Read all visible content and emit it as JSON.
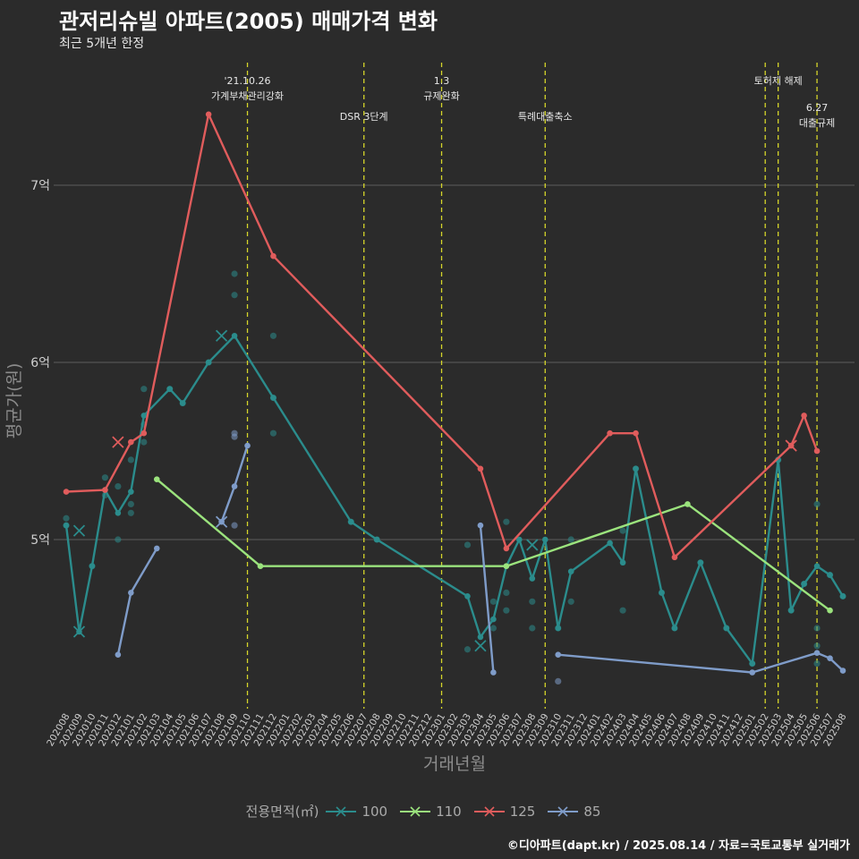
{
  "header": {
    "title": "관저리슈빌 아파트(2005) 매매가격 변화",
    "subtitle": "최근 5개년 한정"
  },
  "caption": "©디아파트(dapt.kr) / 2025.08.14 / 자료=국토교통부 실거래가",
  "legend": {
    "title": "전용면적(㎡)",
    "items": [
      {
        "label": "100",
        "color": "#2b8c8c"
      },
      {
        "label": "110",
        "color": "#9be37d"
      },
      {
        "label": "125",
        "color": "#e05c5c"
      },
      {
        "label": "85",
        "color": "#7f9cc9"
      }
    ]
  },
  "chart_data": {
    "type": "line",
    "xlabel": "거래년월",
    "ylabel": "평균가(원)",
    "ylim": [
      4.05,
      7.95
    ],
    "y_ticks": [
      {
        "value": 5,
        "label": "5억"
      },
      {
        "value": 6,
        "label": "6억"
      },
      {
        "value": 7,
        "label": "7억"
      }
    ],
    "x": [
      "202008",
      "202009",
      "202010",
      "202011",
      "202012",
      "202101",
      "202102",
      "202103",
      "202104",
      "202105",
      "202106",
      "202107",
      "202108",
      "202109",
      "202110",
      "202111",
      "202112",
      "202201",
      "202202",
      "202203",
      "202204",
      "202205",
      "202206",
      "202207",
      "202208",
      "202209",
      "202210",
      "202211",
      "202212",
      "202301",
      "202302",
      "202303",
      "202304",
      "202305",
      "202306",
      "202307",
      "202308",
      "202309",
      "202310",
      "202311",
      "202312",
      "202401",
      "202402",
      "202403",
      "202404",
      "202405",
      "202406",
      "202407",
      "202408",
      "202409",
      "202410",
      "202411",
      "202412",
      "202501",
      "202502",
      "202503",
      "202504",
      "202505",
      "202506",
      "202507",
      "202508"
    ],
    "events": [
      {
        "x": 14.0,
        "label_lines": [
          "'21.10.26",
          "가계부채관리강화"
        ],
        "level": 1
      },
      {
        "x": 23.0,
        "label_lines": [
          "DSR 3단계"
        ],
        "level": 2
      },
      {
        "x": 29.0,
        "label_lines": [
          "1.3",
          "규제완화"
        ],
        "level": 1
      },
      {
        "x": 37.0,
        "label_lines": [
          "특례대출축소"
        ],
        "level": 2
      },
      {
        "x": 54.0,
        "label_lines": [
          "토허제 해제"
        ],
        "level": 1,
        "label_x": 55.0
      },
      {
        "x": 55.0,
        "label_lines": [],
        "level": 1
      },
      {
        "x": 58.0,
        "label_lines": [
          "6.27",
          "대출규제"
        ],
        "level": 3
      }
    ],
    "series": [
      {
        "name": "100",
        "color": "#2b8c8c",
        "line": [
          [
            0,
            5.08
          ],
          [
            1,
            4.48
          ],
          [
            2,
            4.85
          ],
          [
            3,
            5.28
          ],
          [
            4,
            5.15
          ],
          [
            5,
            5.27
          ],
          [
            6,
            5.7
          ],
          [
            8,
            5.85
          ],
          [
            9,
            5.77
          ],
          [
            11,
            6.0
          ],
          [
            13,
            6.15
          ],
          [
            16,
            5.8
          ],
          [
            22,
            5.1
          ],
          [
            24,
            5.0
          ],
          [
            31,
            4.68
          ],
          [
            32,
            4.45
          ],
          [
            33,
            4.55
          ],
          [
            34,
            4.85
          ],
          [
            35,
            5.0
          ],
          [
            36,
            4.78
          ],
          [
            37,
            5.0
          ],
          [
            38,
            4.5
          ],
          [
            39,
            4.82
          ],
          [
            42,
            4.98
          ],
          [
            43,
            4.87
          ],
          [
            44,
            5.4
          ],
          [
            46,
            4.7
          ],
          [
            47,
            4.5
          ],
          [
            49,
            4.87
          ],
          [
            51,
            4.5
          ],
          [
            53,
            4.3
          ],
          [
            55,
            5.45
          ],
          [
            56,
            4.6
          ],
          [
            57,
            4.75
          ],
          [
            58,
            4.85
          ],
          [
            59,
            4.8
          ],
          [
            60,
            4.68
          ]
        ],
        "points": [
          [
            0,
            5.12
          ],
          [
            0,
            5.08
          ],
          [
            2,
            4.85
          ],
          [
            3,
            5.35
          ],
          [
            3,
            5.25
          ],
          [
            4,
            5.3
          ],
          [
            4,
            5.0
          ],
          [
            5,
            5.45
          ],
          [
            5,
            5.2
          ],
          [
            5,
            5.15
          ],
          [
            6,
            5.85
          ],
          [
            6,
            5.65
          ],
          [
            6,
            5.55
          ],
          [
            8,
            5.85
          ],
          [
            9,
            5.77
          ],
          [
            11,
            6.0
          ],
          [
            13,
            6.5
          ],
          [
            13,
            6.38
          ],
          [
            16,
            6.15
          ],
          [
            16,
            5.8
          ],
          [
            16,
            5.6
          ],
          [
            22,
            5.1
          ],
          [
            24,
            5.0
          ],
          [
            31,
            4.97
          ],
          [
            31,
            4.38
          ],
          [
            33,
            4.5
          ],
          [
            33,
            4.65
          ],
          [
            34,
            5.1
          ],
          [
            34,
            4.7
          ],
          [
            34,
            4.6
          ],
          [
            36,
            4.65
          ],
          [
            36,
            4.5
          ],
          [
            38,
            4.5
          ],
          [
            39,
            5.0
          ],
          [
            39,
            4.65
          ],
          [
            43,
            4.6
          ],
          [
            43,
            5.05
          ],
          [
            44,
            5.4
          ],
          [
            46,
            4.7
          ],
          [
            47,
            4.5
          ],
          [
            49,
            4.87
          ],
          [
            51,
            4.5
          ],
          [
            53,
            4.3
          ],
          [
            55,
            5.45
          ],
          [
            56,
            4.6
          ],
          [
            57,
            4.75
          ],
          [
            58,
            5.2
          ],
          [
            58,
            4.5
          ],
          [
            58,
            4.4
          ],
          [
            58,
            4.3
          ],
          [
            59,
            4.8
          ],
          [
            60,
            4.68
          ]
        ],
        "x_markers": [
          [
            1,
            5.05
          ],
          [
            1,
            4.48
          ],
          [
            12,
            6.15
          ],
          [
            32,
            4.4
          ],
          [
            36,
            4.97
          ]
        ]
      },
      {
        "name": "110",
        "color": "#9be37d",
        "line": [
          [
            7,
            5.34
          ],
          [
            15,
            4.85
          ],
          [
            34,
            4.85
          ],
          [
            48,
            5.2
          ],
          [
            59,
            4.6
          ]
        ],
        "points": [],
        "x_markers": []
      },
      {
        "name": "125",
        "color": "#e05c5c",
        "line": [
          [
            0,
            5.27
          ],
          [
            3,
            5.28
          ],
          [
            5,
            5.55
          ],
          [
            6,
            5.6
          ],
          [
            11,
            7.4
          ],
          [
            16,
            6.6
          ],
          [
            32,
            5.4
          ],
          [
            34,
            4.95
          ],
          [
            42,
            5.6
          ],
          [
            44,
            5.6
          ],
          [
            47,
            4.9
          ],
          [
            56,
            5.53
          ],
          [
            57,
            5.7
          ],
          [
            58,
            5.5
          ]
        ],
        "points": [],
        "x_markers": [
          [
            4,
            5.55
          ],
          [
            56,
            5.53
          ]
        ]
      },
      {
        "name": "85",
        "color": "#7f9cc9",
        "line": [
          [
            4,
            4.35
          ],
          [
            5,
            4.7
          ],
          [
            7,
            4.95
          ],
          [
            12,
            5.1
          ],
          [
            13,
            5.3
          ],
          [
            14,
            5.53
          ],
          [
            32,
            5.08
          ],
          [
            33,
            4.25
          ],
          [
            38,
            4.35
          ],
          [
            53,
            4.25
          ],
          [
            58,
            4.36
          ],
          [
            59,
            4.33
          ],
          [
            60,
            4.26
          ]
        ],
        "breaks": [
          3,
          6,
          8
        ],
        "points": [
          [
            13,
            5.6
          ],
          [
            13,
            5.58
          ],
          [
            13,
            5.08
          ],
          [
            38,
            4.2
          ]
        ],
        "x_markers": [
          [
            12,
            5.1
          ]
        ]
      }
    ]
  }
}
